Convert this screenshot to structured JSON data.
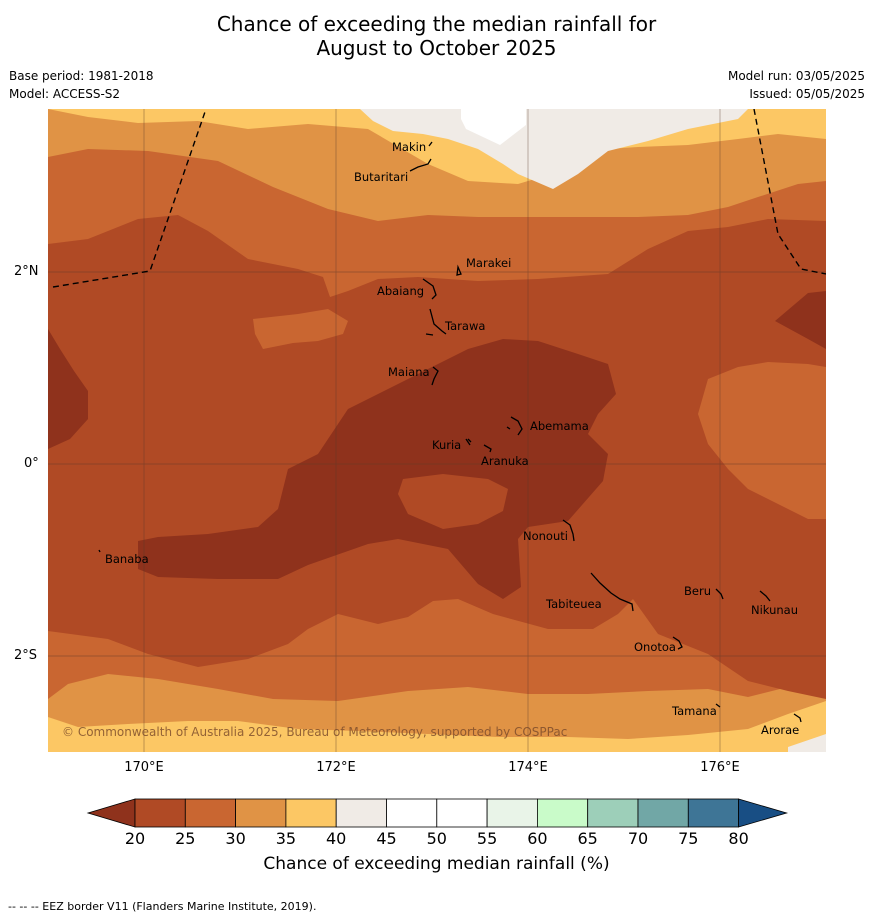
{
  "title_line1": "Chance of exceeding the median rainfall for",
  "title_line2": "August to October 2025",
  "base_period": "Base period: 1981-2018",
  "model": "Model: ACCESS-S2",
  "model_run": "Model run: 03/05/2025",
  "issued": "Issued: 05/05/2025",
  "lat_labels": [
    "2°N",
    "0°",
    "2°S"
  ],
  "lon_labels": [
    "170°E",
    "172°E",
    "174°E",
    "176°E"
  ],
  "places": {
    "makin": "Makin",
    "butaritari": "Butaritari",
    "marakei": "Marakei",
    "abaiang": "Abaiang",
    "tarawa": "Tarawa",
    "maiana": "Maiana",
    "abemama": "Abemama",
    "kuria": "Kuria",
    "aranuka": "Aranuka",
    "nonouti": "Nonouti",
    "banaba": "Banaba",
    "tabiteuea": "Tabiteuea",
    "beru": "Beru",
    "nikunau": "Nikunau",
    "onotoa": "Onotoa",
    "tamana": "Tamana",
    "arorae": "Arorae"
  },
  "copyright": "© Commonwealth of Australia 2025, Bureau of Meteorology, supported by COSPPac",
  "colorbar": {
    "ticks": [
      "20",
      "25",
      "30",
      "35",
      "40",
      "45",
      "50",
      "55",
      "60",
      "65",
      "70",
      "75",
      "80"
    ],
    "colors": [
      "#8f321c",
      "#b04a25",
      "#c96631",
      "#e09345",
      "#fcc764",
      "#f0ebe6",
      "#ffffff",
      "#ffffff",
      "#e9f4e8",
      "#c9fbc9",
      "#9dcfb9",
      "#71a7a6",
      "#3e7596",
      "#184e84"
    ],
    "label": "Chance of exceeding median rainfall (%)"
  },
  "footnote": "--  --  -- EEZ border V11 (Flanders Marine Institute, 2019)."
}
